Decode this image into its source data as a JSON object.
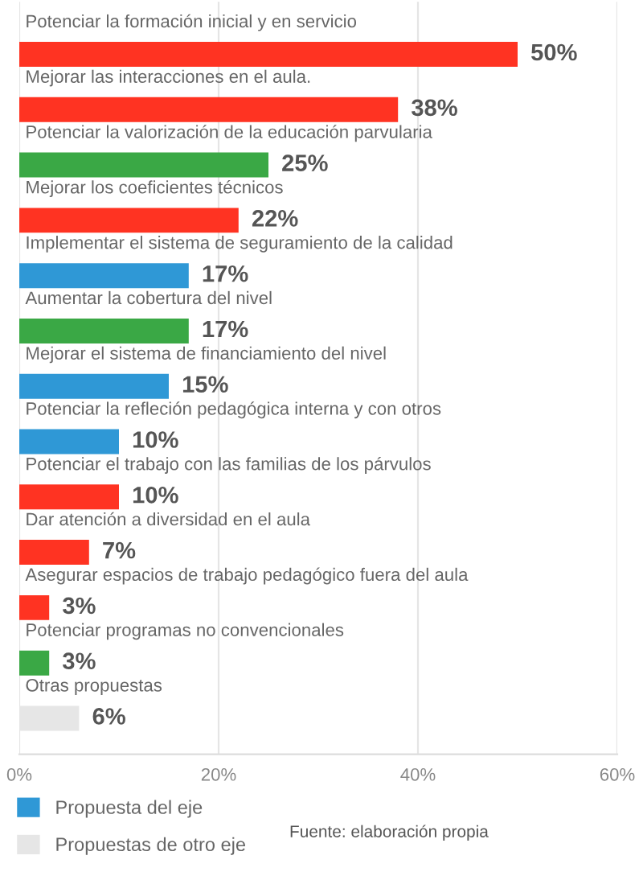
{
  "chart_data": {
    "type": "bar",
    "orientation": "horizontal",
    "categories": [
      "Potenciar la formación inicial y en servicio",
      "Mejorar las interacciones en el aula.",
      "Potenciar la valorización de la educación parvularia",
      "Mejorar los coeficientes técnicos",
      "Implementar el sistema de seguramiento de la calidad",
      "Aumentar la cobertura del nivel",
      "Mejorar el sistema de financiamiento del nivel",
      "Potenciar la refleción pedagógica interna y con otros",
      "Potenciar el trabajo con las familias de los párvulos",
      "Dar atención a diversidad en el aula",
      "Asegurar espacios de trabajo pedagógico fuera del aula",
      "Potenciar programas no convencionales",
      "Otras propuestas"
    ],
    "series": [
      {
        "color": "#ff3322",
        "values": [
          50,
          38,
          null,
          22,
          null,
          null,
          null,
          null,
          10,
          7,
          3,
          null,
          null
        ],
        "value_labels": [
          "50%",
          "38%",
          null,
          "22%",
          null,
          null,
          null,
          null,
          "10%",
          "7%",
          "3%",
          null,
          null
        ]
      },
      {
        "color": "#3aa845",
        "values": [
          null,
          null,
          25,
          null,
          null,
          17,
          null,
          null,
          null,
          null,
          null,
          3,
          null
        ],
        "value_labels": [
          null,
          null,
          "25%",
          null,
          null,
          "17%",
          null,
          null,
          null,
          null,
          null,
          "3%",
          null
        ]
      },
      {
        "name": "Propuesta del eje",
        "color": "#2f98d6",
        "values": [
          null,
          null,
          null,
          null,
          17,
          null,
          15,
          10,
          null,
          null,
          null,
          null,
          null
        ],
        "value_labels": [
          null,
          null,
          null,
          null,
          "17%",
          null,
          "15%",
          "10%",
          null,
          null,
          null,
          null,
          null
        ]
      },
      {
        "name": "Propuestas de otro eje",
        "color": "#e6e6e6",
        "values": [
          null,
          null,
          null,
          null,
          null,
          null,
          null,
          null,
          null,
          null,
          null,
          null,
          6
        ],
        "value_labels": [
          null,
          null,
          null,
          null,
          null,
          null,
          null,
          null,
          null,
          null,
          null,
          null,
          "6%"
        ]
      }
    ],
    "xlim": [
      0,
      60
    ],
    "xticks": [
      {
        "value": 0,
        "label": "0%"
      },
      {
        "value": 20,
        "label": "20%"
      },
      {
        "value": 40,
        "label": "40%"
      },
      {
        "value": 60,
        "label": "60%"
      }
    ],
    "grid": "x",
    "legend": "bottom left",
    "annotations": [
      "Fuente: elaboración propia"
    ]
  }
}
